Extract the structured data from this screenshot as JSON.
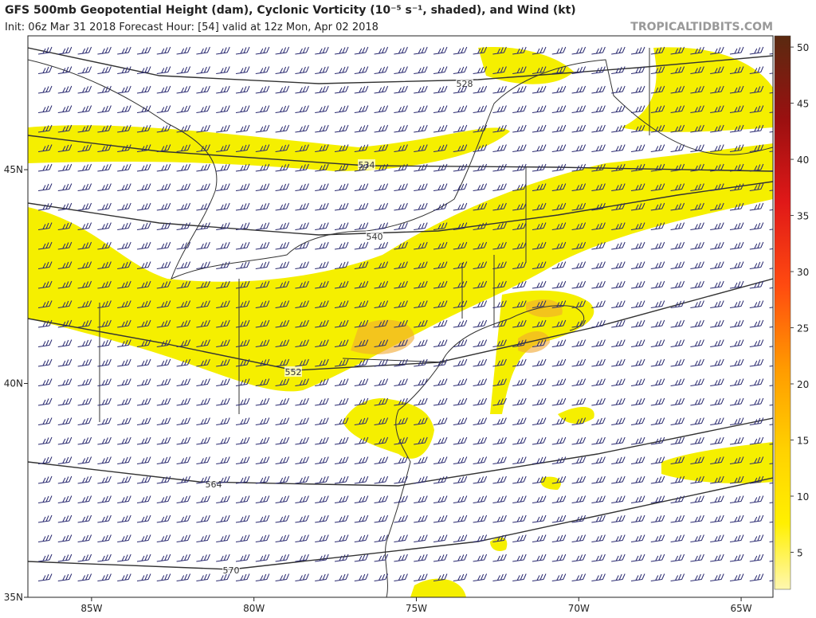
{
  "header": {
    "title": "GFS 500mb Geopotential Height (dam), Cyclonic Vorticity (10⁻⁵ s⁻¹, shaded), and Wind (kt)",
    "subtitle": "Init: 06z Mar 31 2018   Forecast Hour: [54]   valid at 12z Mon, Apr 02 2018",
    "site": "TROPICALTIDBITS.COM"
  },
  "map": {
    "xlim": [
      -86.96,
      -64.02
    ],
    "ylim": [
      35,
      48.13
    ],
    "xticks": [
      {
        "value": -85,
        "label": "85W"
      },
      {
        "value": -80,
        "label": "80W"
      },
      {
        "value": -75,
        "label": "75W"
      },
      {
        "value": -70,
        "label": "70W"
      },
      {
        "value": -65,
        "label": "65W"
      }
    ],
    "yticks": [
      {
        "value": 35,
        "label": "35N"
      },
      {
        "value": 40,
        "label": "40N"
      },
      {
        "value": 45,
        "label": "45N"
      }
    ],
    "contours": [
      528,
      534,
      540,
      552,
      564,
      570
    ]
  },
  "colorbar": {
    "lim": [
      1.7,
      51
    ],
    "ticks": [
      5,
      10,
      15,
      20,
      25,
      30,
      35,
      40,
      45,
      50
    ]
  }
}
